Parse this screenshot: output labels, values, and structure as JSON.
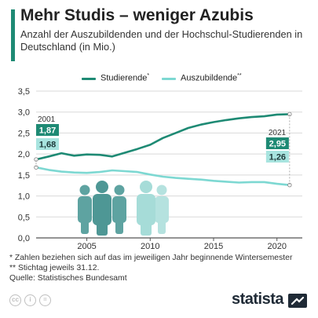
{
  "title": "Mehr Studis – weniger Azubis",
  "subtitle": "Anzahl der Auszubildenden und der Hochschul-Studierenden in Deutschland (in Mio.)",
  "legend": {
    "studierende": "Studierende",
    "studierende_mark": "*",
    "auszubildende": "Auszubildende",
    "auszubildende_mark": "**"
  },
  "colors": {
    "studierende": "#1e8a74",
    "auszubildende": "#7dd8d2",
    "grid": "#d9d9d9",
    "axis": "#555555",
    "accent": "#1e8a74",
    "people_dark": "#5ea3a1",
    "people_light": "#b5e2df"
  },
  "annotations": {
    "start_year": "2001",
    "start_studierende": "1,87",
    "start_auszubildende": "1,68",
    "end_year": "2021",
    "end_studierende": "2,95",
    "end_auszubildende": "1,26"
  },
  "icons": [
    "people-group-dark-icon",
    "people-group-light-icon"
  ],
  "footnotes": [
    "*   Zahlen beziehen sich auf das im jeweiligen Jahr beginnende Wintersemester",
    "** Stichtag jeweils 31.12.",
    "Quelle: Statistisches Bundesamt"
  ],
  "brand": "statista",
  "license_icons": [
    "cc-icon",
    "by-icon",
    "equal-icon"
  ],
  "chart_data": {
    "type": "line",
    "x": [
      2001,
      2002,
      2003,
      2004,
      2005,
      2006,
      2007,
      2008,
      2009,
      2010,
      2011,
      2012,
      2013,
      2014,
      2015,
      2016,
      2017,
      2018,
      2019,
      2020,
      2021
    ],
    "series": [
      {
        "name": "Studierende",
        "values": [
          1.87,
          1.94,
          2.02,
          1.96,
          1.99,
          1.98,
          1.94,
          2.03,
          2.12,
          2.22,
          2.38,
          2.5,
          2.62,
          2.7,
          2.76,
          2.81,
          2.85,
          2.88,
          2.9,
          2.94,
          2.95
        ]
      },
      {
        "name": "Auszubildende",
        "values": [
          1.68,
          1.62,
          1.58,
          1.56,
          1.55,
          1.57,
          1.61,
          1.59,
          1.57,
          1.51,
          1.46,
          1.43,
          1.41,
          1.39,
          1.36,
          1.34,
          1.32,
          1.33,
          1.33,
          1.29,
          1.26
        ]
      }
    ],
    "xticks": [
      2005,
      2010,
      2015,
      2020
    ],
    "yticks": [
      "0,0",
      "0,5",
      "1,0",
      "1,5",
      "2,0",
      "2,5",
      "3,0",
      "3,5"
    ],
    "ylim": [
      0,
      3.5
    ],
    "xlim": [
      2001,
      2022
    ],
    "grid": true,
    "legend_position": "top-center"
  }
}
